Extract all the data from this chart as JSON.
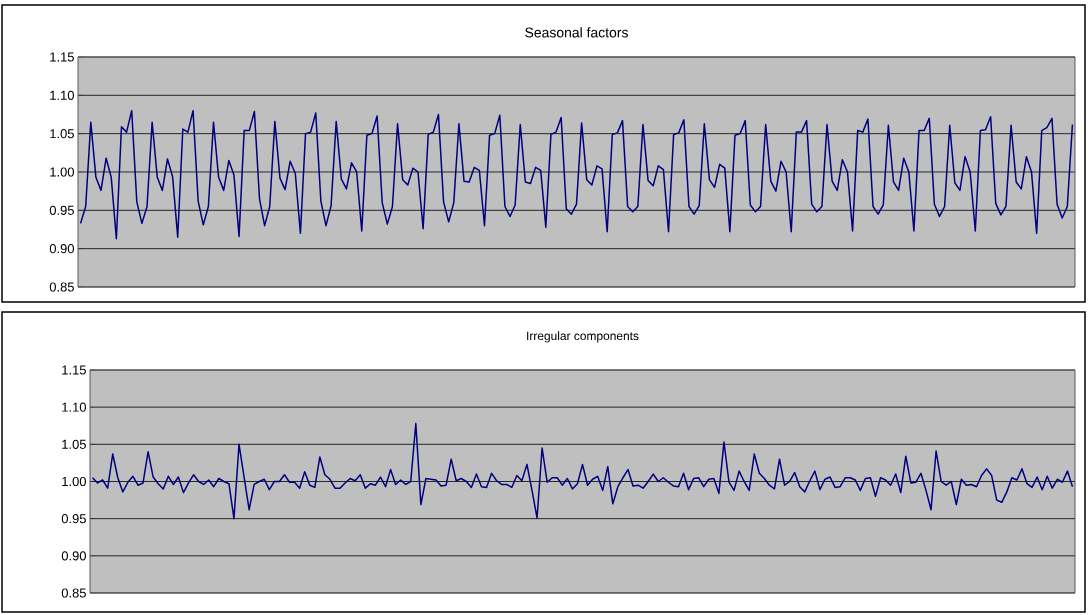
{
  "chart_data": [
    {
      "type": "line",
      "title": "Seasonal factors",
      "color": "#000080",
      "grid": "y",
      "ylim": [
        0.85,
        1.15
      ],
      "yticks": [
        {
          "value": 0.85,
          "label": "0.85"
        },
        {
          "value": 0.9,
          "label": "0.90"
        },
        {
          "value": 0.95,
          "label": "0.95"
        },
        {
          "value": 1.0,
          "label": "1.00"
        },
        {
          "value": 1.05,
          "label": "1.05"
        },
        {
          "value": 1.1,
          "label": "1.10"
        },
        {
          "value": 1.15,
          "label": "1.15"
        }
      ],
      "categories": [
        null,
        null,
        null,
        null,
        null,
        null,
        null,
        null,
        null,
        null,
        null,
        null,
        null,
        null,
        null,
        null,
        null,
        null,
        null,
        null,
        null,
        null,
        null,
        null,
        null,
        null,
        null,
        null,
        null,
        null,
        null,
        null,
        null,
        null,
        null,
        null,
        null,
        null,
        null,
        null,
        null,
        null,
        null,
        null,
        null,
        null,
        null,
        null,
        null,
        null,
        null,
        null,
        null,
        null,
        null,
        null,
        null,
        null,
        null,
        null,
        null,
        null,
        null,
        null,
        null,
        null,
        null,
        null,
        null,
        null,
        null,
        null,
        null,
        null,
        null,
        null,
        null,
        null,
        null,
        null,
        null,
        null,
        null,
        null,
        null,
        null,
        null,
        null,
        null,
        null,
        null,
        null,
        null,
        null,
        null,
        null,
        null,
        null,
        null,
        null,
        null,
        null,
        null,
        null,
        null,
        null,
        null,
        null,
        null,
        null,
        null,
        null,
        null,
        null,
        null,
        null,
        null,
        null,
        null,
        null,
        null,
        null,
        null,
        null,
        null,
        null,
        null,
        null,
        null,
        null,
        null,
        null,
        null,
        null,
        null,
        null,
        null,
        null,
        null,
        null,
        null,
        null,
        null,
        null,
        null,
        null,
        null,
        null,
        null,
        null,
        null,
        null,
        null,
        null,
        null,
        null,
        null,
        null,
        null,
        null,
        null,
        null,
        null,
        null,
        null,
        null,
        null,
        null,
        null,
        null,
        null,
        null,
        null,
        null,
        null,
        null,
        null,
        null,
        null,
        null,
        null,
        null,
        null,
        null,
        null,
        null,
        null,
        null,
        null,
        null,
        null,
        null,
        null,
        null,
        null
      ],
      "values": [
        0.933,
        0.955,
        1.065,
        0.993,
        0.976,
        1.018,
        0.993,
        0.913,
        1.059,
        1.052,
        1.08,
        0.961,
        0.933,
        0.955,
        1.065,
        0.993,
        0.976,
        1.017,
        0.994,
        0.915,
        1.056,
        1.052,
        1.08,
        0.962,
        0.931,
        0.955,
        1.065,
        0.993,
        0.976,
        1.015,
        0.996,
        0.916,
        1.054,
        1.054,
        1.079,
        0.965,
        0.93,
        0.955,
        1.066,
        0.992,
        0.977,
        1.014,
        0.998,
        0.92,
        1.05,
        1.052,
        1.077,
        0.962,
        0.93,
        0.956,
        1.066,
        0.991,
        0.978,
        1.012,
        1.0,
        0.923,
        1.048,
        1.05,
        1.073,
        0.96,
        0.932,
        0.955,
        1.063,
        0.99,
        0.983,
        1.005,
        1.0,
        0.926,
        1.049,
        1.052,
        1.075,
        0.961,
        0.935,
        0.96,
        1.063,
        0.988,
        0.987,
        1.006,
        1.002,
        0.93,
        1.048,
        1.05,
        1.074,
        0.955,
        0.942,
        0.957,
        1.062,
        0.987,
        0.985,
        1.006,
        1.002,
        0.928,
        1.049,
        1.052,
        1.071,
        0.952,
        0.945,
        0.958,
        1.064,
        0.99,
        0.983,
        1.008,
        1.004,
        0.922,
        1.049,
        1.051,
        1.067,
        0.955,
        0.948,
        0.955,
        1.062,
        0.989,
        0.982,
        1.008,
        1.003,
        0.922,
        1.049,
        1.051,
        1.068,
        0.955,
        0.945,
        0.956,
        1.063,
        0.99,
        0.98,
        1.01,
        1.005,
        0.922,
        1.048,
        1.05,
        1.067,
        0.957,
        0.948,
        0.955,
        1.062,
        0.988,
        0.975,
        1.014,
        1.0,
        0.922,
        1.052,
        1.052,
        1.067,
        0.958,
        0.948,
        0.955,
        1.062,
        0.988,
        0.976,
        1.016,
        1.0,
        0.923,
        1.054,
        1.052,
        1.069,
        0.955,
        0.945,
        0.957,
        1.061,
        0.987,
        0.976,
        1.018,
        1.0,
        0.923,
        1.054,
        1.054,
        1.07,
        0.958,
        0.942,
        0.955,
        1.061,
        0.986,
        0.976,
        1.02,
        1.0,
        0.923,
        1.054,
        1.055,
        1.072,
        0.959,
        0.944,
        0.955,
        1.061,
        0.987,
        0.978,
        1.02,
        1.0,
        0.92,
        1.054,
        1.058,
        1.07,
        0.958,
        0.94,
        0.955,
        1.062
      ]
    },
    {
      "type": "line",
      "title": "Irregular components",
      "color": "#000080",
      "grid": "y",
      "ylim": [
        0.85,
        1.15
      ],
      "yticks": [
        {
          "value": 0.85,
          "label": "0.85"
        },
        {
          "value": 0.9,
          "label": "0.90"
        },
        {
          "value": 0.95,
          "label": "0.95"
        },
        {
          "value": 1.0,
          "label": "1.00"
        },
        {
          "value": 1.05,
          "label": "1.05"
        },
        {
          "value": 1.1,
          "label": "1.10"
        },
        {
          "value": 1.15,
          "label": "1.15"
        }
      ],
      "categories": [
        null,
        null,
        null,
        null,
        null,
        null,
        null,
        null,
        null,
        null,
        null,
        null,
        null,
        null,
        null,
        null,
        null,
        null,
        null,
        null,
        null,
        null,
        null,
        null,
        null,
        null,
        null,
        null,
        null,
        null,
        null,
        null,
        null,
        null,
        null,
        null,
        null,
        null,
        null,
        null,
        null,
        null,
        null,
        null,
        null,
        null,
        null,
        null,
        null,
        null,
        null,
        null,
        null,
        null,
        null,
        null,
        null,
        null,
        null,
        null,
        null,
        null,
        null,
        null,
        null,
        null,
        null,
        null,
        null,
        null,
        null,
        null,
        null,
        null,
        null,
        null,
        null,
        null,
        null,
        null,
        null,
        null,
        null,
        null,
        null,
        null,
        null,
        null,
        null,
        null,
        null,
        null,
        null,
        null,
        null,
        null,
        null,
        null,
        null,
        null,
        null,
        null,
        null,
        null,
        null,
        null,
        null,
        null,
        null,
        null,
        null,
        null,
        null,
        null,
        null,
        null,
        null,
        null,
        null,
        null,
        null,
        null,
        null,
        null,
        null,
        null,
        null,
        null,
        null,
        null,
        null,
        null,
        null,
        null,
        null,
        null,
        null,
        null,
        null,
        null,
        null,
        null,
        null,
        null,
        null,
        null,
        null,
        null,
        null,
        null,
        null,
        null,
        null,
        null,
        null,
        null,
        null,
        null,
        null,
        null,
        null,
        null,
        null,
        null,
        null,
        null,
        null,
        null,
        null,
        null,
        null,
        null,
        null,
        null,
        null,
        null,
        null,
        null,
        null,
        null,
        null,
        null,
        null,
        null,
        null,
        null,
        null,
        null,
        null,
        null,
        null,
        null,
        null,
        null,
        null
      ],
      "values": [
        1.005,
        0.998,
        1.002,
        0.991,
        1.037,
        1.005,
        0.986,
        0.999,
        1.007,
        0.995,
        0.998,
        1.04,
        1.006,
        0.997,
        0.99,
        1.007,
        0.996,
        1.006,
        0.985,
        0.998,
        1.009,
        1.0,
        0.996,
        1.002,
        0.993,
        1.004,
        1.0,
        0.997,
        0.95,
        1.05,
        1.006,
        0.962,
        0.996,
        1.0,
        1.003,
        0.989,
        1.0,
        1.0,
        1.009,
        0.999,
        0.999,
        0.991,
        1.013,
        0.995,
        0.992,
        1.033,
        1.009,
        1.003,
        0.991,
        0.991,
        0.998,
        1.004,
        1.001,
        1.009,
        0.991,
        0.997,
        0.995,
        1.006,
        0.993,
        1.016,
        0.996,
        1.002,
        0.996,
        1.0,
        1.078,
        0.969,
        1.004,
        1.003,
        1.002,
        0.994,
        0.995,
        1.03,
        1.001,
        1.004,
        1.0,
        0.992,
        1.01,
        0.993,
        0.992,
        1.011,
        1.001,
        0.996,
        0.996,
        0.992,
        1.008,
        1.001,
        1.023,
        0.988,
        0.951,
        1.045,
        0.999,
        1.005,
        1.005,
        0.995,
        1.004,
        0.99,
        0.997,
        1.023,
        0.995,
        1.003,
        1.007,
        0.988,
        1.02,
        0.97,
        0.993,
        1.005,
        1.016,
        0.994,
        0.995,
        0.991,
        1.0,
        1.01,
        1.0,
        1.005,
        0.999,
        0.994,
        0.993,
        1.011,
        0.989,
        1.004,
        1.005,
        0.993,
        1.003,
        1.004,
        0.984,
        1.053,
        0.999,
        0.988,
        1.014,
        1.0,
        0.988,
        1.037,
        1.011,
        1.004,
        0.995,
        0.99,
        1.03,
        0.995,
        1.0,
        1.012,
        0.993,
        0.986,
        1.001,
        1.014,
        0.989,
        1.003,
        1.006,
        0.992,
        0.993,
        1.005,
        1.005,
        1.002,
        0.988,
        1.004,
        1.005,
        0.98,
        1.005,
        1.002,
        0.995,
        1.01,
        0.985,
        1.034,
        0.998,
        0.999,
        1.011,
        0.988,
        0.962,
        1.041,
        1.0,
        0.995,
        1.0,
        0.969,
        1.003,
        0.995,
        0.996,
        0.993,
        1.008,
        1.017,
        1.008,
        0.975,
        0.972,
        0.986,
        1.005,
        1.002,
        1.017,
        0.997,
        0.992,
        1.006,
        0.989,
        1.007,
        0.991,
        1.003,
        0.999,
        1.014,
        0.993
      ]
    }
  ]
}
